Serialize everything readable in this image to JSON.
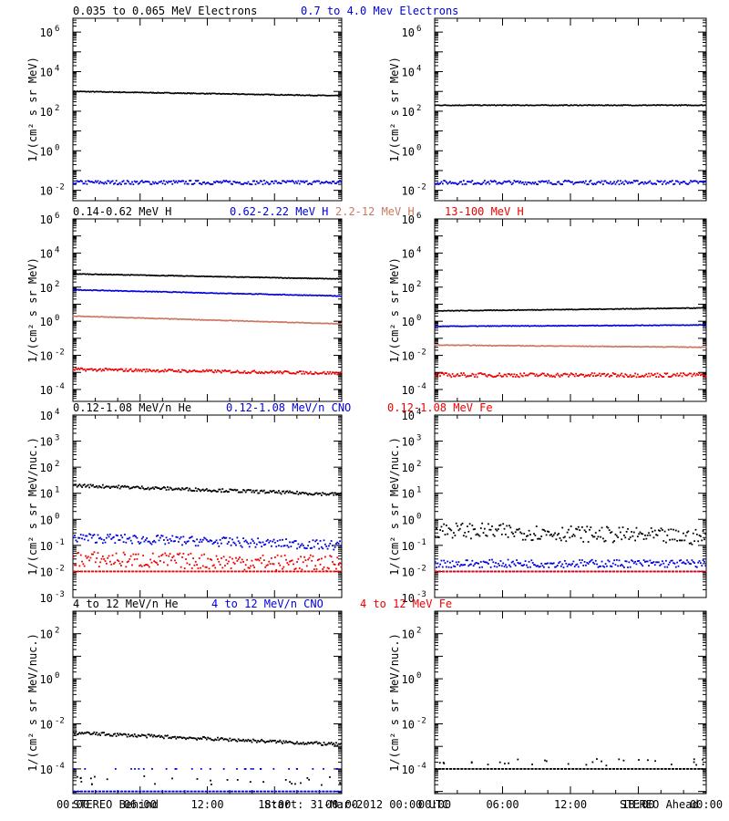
{
  "colors": {
    "black": "#000000",
    "blue": "#0000dd",
    "brown": "#c87860",
    "red": "#ee0000"
  },
  "footer": {
    "left": "STEREO Behind",
    "center": "Start: 31-Mar-2012 00:00 UTC",
    "right": "STEREO Ahead"
  },
  "chart_data": [
    {
      "id": "electrons",
      "type": "scatter",
      "ylabel": "1/(cm² s sr MeV)",
      "yscale": "log",
      "ylim": [
        0.003,
        5000000
      ],
      "yticks": [
        {
          "value": 0.01,
          "base": "10",
          "exp": "-2"
        },
        {
          "value": 1,
          "base": "10",
          "exp": "0"
        },
        {
          "value": 100,
          "base": "10",
          "exp": "2"
        },
        {
          "value": 10000,
          "base": "10",
          "exp": "4"
        },
        {
          "value": 1000000,
          "base": "10",
          "exp": "6"
        }
      ],
      "legend": [
        {
          "text": "0.035 to 0.065 MeV Electrons",
          "color": "#000000"
        },
        {
          "text": "0.7 to 4.0 Mev Electrons",
          "color": "#0000dd"
        }
      ],
      "behind": [
        {
          "color": "#000000",
          "start": 1000,
          "end": 600,
          "jitter": 0.02,
          "style": "line"
        },
        {
          "color": "#0000dd",
          "start": 0.025,
          "end": 0.025,
          "jitter": 0.1,
          "style": "scatter"
        }
      ],
      "ahead": [
        {
          "color": "#000000",
          "start": 200,
          "end": 200,
          "jitter": 0.02,
          "style": "line"
        },
        {
          "color": "#0000dd",
          "start": 0.025,
          "end": 0.025,
          "jitter": 0.1,
          "style": "scatter"
        }
      ]
    },
    {
      "id": "protons",
      "type": "scatter",
      "ylabel": "1/(cm² s sr MeV)",
      "yscale": "log",
      "ylim": [
        2e-05,
        1000000
      ],
      "yticks": [
        {
          "value": 0.0001,
          "base": "10",
          "exp": "-4"
        },
        {
          "value": 0.01,
          "base": "10",
          "exp": "-2"
        },
        {
          "value": 1,
          "base": "10",
          "exp": "0"
        },
        {
          "value": 100,
          "base": "10",
          "exp": "2"
        },
        {
          "value": 10000,
          "base": "10",
          "exp": "4"
        },
        {
          "value": 1000000,
          "base": "10",
          "exp": "6"
        }
      ],
      "legend": [
        {
          "text": "0.14-0.62 MeV H",
          "color": "#000000"
        },
        {
          "text": "0.62-2.22 MeV H",
          "color": "#0000dd"
        },
        {
          "text": "2.2-12 MeV H",
          "color": "#c87860"
        },
        {
          "text": "13-100 MeV H",
          "color": "#ee0000"
        }
      ],
      "behind": [
        {
          "color": "#000000",
          "start": 600,
          "end": 300,
          "jitter": 0.02,
          "style": "line"
        },
        {
          "color": "#0000dd",
          "start": 70,
          "end": 30,
          "jitter": 0.02,
          "style": "line"
        },
        {
          "color": "#c87860",
          "start": 2,
          "end": 0.7,
          "jitter": 0.02,
          "style": "line"
        },
        {
          "color": "#ee0000",
          "start": 0.0015,
          "end": 0.0009,
          "jitter": 0.08,
          "style": "scatter"
        }
      ],
      "ahead": [
        {
          "color": "#000000",
          "start": 4,
          "end": 6,
          "jitter": 0.02,
          "style": "line"
        },
        {
          "color": "#0000dd",
          "start": 0.5,
          "end": 0.6,
          "jitter": 0.02,
          "style": "line"
        },
        {
          "color": "#c87860",
          "start": 0.04,
          "end": 0.03,
          "jitter": 0.02,
          "style": "line"
        },
        {
          "color": "#ee0000",
          "start": 0.0007,
          "end": 0.0007,
          "jitter": 0.12,
          "style": "scatter"
        }
      ]
    },
    {
      "id": "heavy-low",
      "type": "scatter",
      "ylabel": "1/(cm² s sr MeV/nuc.)",
      "yscale": "log",
      "ylim": [
        0.001,
        10000
      ],
      "yticks": [
        {
          "value": 0.001,
          "base": "10",
          "exp": "-3"
        },
        {
          "value": 0.01,
          "base": "10",
          "exp": "-2"
        },
        {
          "value": 0.1,
          "base": "10",
          "exp": "-1"
        },
        {
          "value": 1,
          "base": "10",
          "exp": "0"
        },
        {
          "value": 10,
          "base": "10",
          "exp": "1"
        },
        {
          "value": 100,
          "base": "10",
          "exp": "2"
        },
        {
          "value": 1000,
          "base": "10",
          "exp": "3"
        },
        {
          "value": 10000,
          "base": "10",
          "exp": "4"
        }
      ],
      "legend": [
        {
          "text": "0.12-1.08 MeV/n He",
          "color": "#000000"
        },
        {
          "text": "0.12-1.08 MeV/n CNO",
          "color": "#0000dd"
        },
        {
          "text": "0.12-1.08 MeV Fe",
          "color": "#ee0000"
        }
      ],
      "behind": [
        {
          "color": "#000000",
          "start": 20,
          "end": 9,
          "jitter": 0.06,
          "style": "scatter"
        },
        {
          "color": "#0000dd",
          "start": 0.2,
          "end": 0.1,
          "jitter": 0.18,
          "style": "scatter"
        },
        {
          "color": "#ee0000",
          "start": 0.03,
          "end": 0.02,
          "jitter": 0.3,
          "style": "scatter"
        },
        {
          "color": "#ee0000",
          "start": 0.01,
          "end": 0.01,
          "jitter": 0.0,
          "style": "dashed"
        }
      ],
      "ahead": [
        {
          "color": "#000000",
          "start": 0.4,
          "end": 0.2,
          "jitter": 0.3,
          "style": "scatter"
        },
        {
          "color": "#0000dd",
          "start": 0.02,
          "end": 0.02,
          "jitter": 0.15,
          "style": "scatter"
        },
        {
          "color": "#0000dd",
          "start": 0.01,
          "end": 0.01,
          "jitter": 0.0,
          "style": "dashed"
        },
        {
          "color": "#ee0000",
          "start": 0.01,
          "end": 0.01,
          "jitter": 0.0,
          "style": "dashed"
        }
      ]
    },
    {
      "id": "heavy-high",
      "type": "scatter",
      "ylabel": "1/(cm² s sr MeV/nuc.)",
      "yscale": "log",
      "ylim": [
        8e-06,
        1000
      ],
      "yticks": [
        {
          "value": 0.0001,
          "base": "10",
          "exp": "-4"
        },
        {
          "value": 0.01,
          "base": "10",
          "exp": "-2"
        },
        {
          "value": 1,
          "base": "10",
          "exp": "0"
        },
        {
          "value": 100,
          "base": "10",
          "exp": "2"
        }
      ],
      "legend": [
        {
          "text": "4 to 12 MeV/n He",
          "color": "#000000"
        },
        {
          "text": "4 to 12 MeV/n CNO",
          "color": "#0000dd"
        },
        {
          "text": "4 to 12 MeV Fe",
          "color": "#ee0000"
        }
      ],
      "behind": [
        {
          "color": "#000000",
          "start": 0.004,
          "end": 0.0012,
          "jitter": 0.07,
          "style": "scatter"
        },
        {
          "color": "#0000dd",
          "start": 0.0001,
          "end": 0.0001,
          "jitter": 0.0,
          "style": "sparse"
        },
        {
          "color": "#0000dd",
          "start": 1e-05,
          "end": 1e-05,
          "jitter": 0.0,
          "style": "dashed"
        },
        {
          "color": "#000000",
          "start": 3e-05,
          "end": 3e-05,
          "jitter": 0.2,
          "style": "sparse"
        }
      ],
      "ahead": [
        {
          "color": "#000000",
          "start": 0.0002,
          "end": 0.0002,
          "jitter": 0.15,
          "style": "sparse"
        },
        {
          "color": "#000000",
          "start": 0.0001,
          "end": 0.0001,
          "jitter": 0.0,
          "style": "dashed"
        }
      ]
    }
  ],
  "x_axis": {
    "ticks": [
      "00:00",
      "06:00",
      "12:00",
      "18:00",
      "00:00"
    ],
    "hours": [
      0,
      6,
      12,
      18,
      24
    ]
  }
}
